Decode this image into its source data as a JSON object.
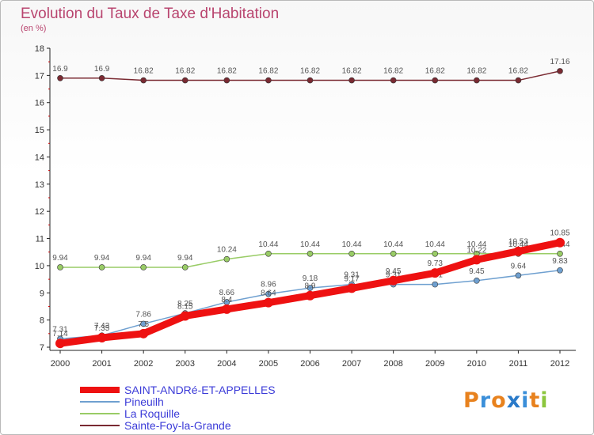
{
  "chart_data": {
    "type": "line",
    "title": "Evolution du Taux de Taxe d'Habitation",
    "subtitle": "(en %)",
    "x": [
      "2000",
      "2001",
      "2002",
      "2003",
      "2004",
      "2005",
      "2006",
      "2007",
      "2008",
      "2009",
      "2010",
      "2011",
      "2012"
    ],
    "ylim": [
      7,
      18
    ],
    "yticks": [
      7,
      8,
      9,
      10,
      11,
      12,
      13,
      14,
      15,
      16,
      17,
      18
    ],
    "grid": false,
    "legend_position": "bottom-left",
    "series": [
      {
        "name": "SAINT-ANDRé-ET-APPELLES",
        "color": "#ee1111",
        "width": 9,
        "labels": [
          "7.14",
          "7.35",
          "7.5",
          "8.15",
          "8.4",
          "8.64",
          "8.9",
          "9.17",
          "9.45",
          "9.73",
          "10.22",
          "10.53",
          "10.85"
        ],
        "values": [
          7.14,
          7.35,
          7.5,
          8.15,
          8.4,
          8.64,
          8.9,
          9.17,
          9.45,
          9.73,
          10.22,
          10.53,
          10.85
        ]
      },
      {
        "name": "Pineuilh",
        "color": "#6fa0d0",
        "width": 1.5,
        "labels": [
          "7.31",
          "7.43",
          "7.86",
          "8.25",
          "8.66",
          "8.96",
          "9.18",
          "9.31",
          "9.31",
          "9.31",
          "9.45",
          "9.64",
          "9.83"
        ],
        "values": [
          7.31,
          7.43,
          7.86,
          8.25,
          8.66,
          8.96,
          9.18,
          9.31,
          9.31,
          9.31,
          9.45,
          9.64,
          9.83
        ]
      },
      {
        "name": "La Roquille",
        "color": "#99cc66",
        "width": 1.5,
        "labels": [
          "9.94",
          "9.94",
          "9.94",
          "9.94",
          "10.24",
          "10.44",
          "10.44",
          "10.44",
          "10.44",
          "10.44",
          "10.44",
          "10.44",
          "10.44"
        ],
        "values": [
          9.94,
          9.94,
          9.94,
          9.94,
          10.24,
          10.44,
          10.44,
          10.44,
          10.44,
          10.44,
          10.44,
          10.44,
          10.44
        ]
      },
      {
        "name": "Sainte-Foy-la-Grande",
        "color": "#7a2a32",
        "width": 1.5,
        "labels": [
          "16.9",
          "16.9",
          "16.82",
          "16.82",
          "16.82",
          "16.82",
          "16.82",
          "16.82",
          "16.82",
          "16.82",
          "16.82",
          "16.82",
          "17.16"
        ],
        "values": [
          16.9,
          16.9,
          16.82,
          16.82,
          16.82,
          16.82,
          16.82,
          16.82,
          16.82,
          16.82,
          16.82,
          16.82,
          17.16
        ]
      }
    ],
    "legend_text_color": "#3b3bd8"
  },
  "logo": {
    "text": "Proxiti",
    "letters": [
      "P",
      "r",
      "o",
      "x",
      "i",
      "t",
      "i"
    ],
    "colors": [
      "#e8821e",
      "#3b8fd9",
      "#e8821e",
      "#2a7ac9",
      "#3b8fd9",
      "#e8821e",
      "#8cc63e"
    ]
  }
}
